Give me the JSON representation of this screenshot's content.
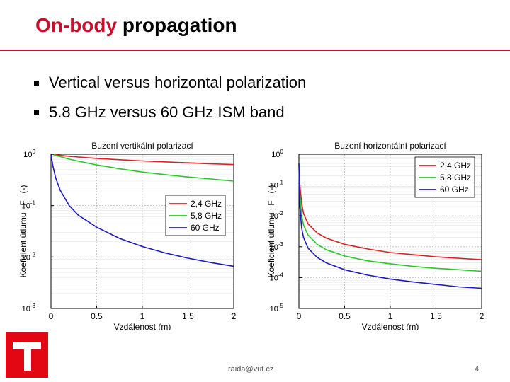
{
  "slide": {
    "title_accent": "On-body",
    "title_rest": "propagation",
    "bullets": [
      "Vertical versus horizontal polarization",
      "5.8 GHz versus 60 GHz ISM band"
    ],
    "footer_email": "raida@vut.cz",
    "page_number": "4",
    "colors": {
      "accent": "#c8102e",
      "logo": "#e30613"
    }
  },
  "chart_data": [
    {
      "type": "line",
      "title": "Buzení vertikální polarizací",
      "xlabel": "Vzdálenost (m)",
      "ylabel": "Koeficient útlumu | F | (-)",
      "yscale": "log",
      "xlim": [
        0,
        2
      ],
      "ylim": [
        0.001,
        1
      ],
      "xticks": [
        "0",
        "0.5",
        "1",
        "1.5",
        "2"
      ],
      "yticks": [
        {
          "v": 1,
          "e": "0"
        },
        {
          "v": 0.1,
          "e": "-1"
        },
        {
          "v": 0.01,
          "e": "-2"
        },
        {
          "v": 0.001,
          "e": "-3"
        }
      ],
      "grid": true,
      "legend": "center-right",
      "x": [
        0,
        0.02,
        0.05,
        0.1,
        0.2,
        0.3,
        0.5,
        0.75,
        1,
        1.25,
        1.5,
        1.75,
        2
      ],
      "series": [
        {
          "name": "2,4 GHz",
          "color": "#e02020",
          "values": [
            1,
            1,
            0.98,
            0.95,
            0.91,
            0.88,
            0.83,
            0.78,
            0.74,
            0.71,
            0.68,
            0.65,
            0.63
          ]
        },
        {
          "name": "5,8 GHz",
          "color": "#22cc22",
          "values": [
            1,
            0.99,
            0.95,
            0.9,
            0.8,
            0.73,
            0.62,
            0.52,
            0.45,
            0.4,
            0.36,
            0.33,
            0.3
          ]
        },
        {
          "name": "60 GHz",
          "color": "#1a1acc",
          "values": [
            1,
            0.6,
            0.35,
            0.2,
            0.1,
            0.065,
            0.038,
            0.023,
            0.016,
            0.012,
            0.0095,
            0.0078,
            0.0066
          ]
        }
      ]
    },
    {
      "type": "line",
      "title": "Buzení horizontální polarizací",
      "xlabel": "Vzdálenost (m)",
      "ylabel": "Koeficient útlumu | F | (-)",
      "yscale": "log",
      "xlim": [
        0,
        2
      ],
      "ylim": [
        1e-05,
        1
      ],
      "xticks": [
        "0",
        "0.5",
        "1",
        "1.5",
        "2"
      ],
      "yticks": [
        {
          "v": 1,
          "e": "0"
        },
        {
          "v": 0.1,
          "e": "-1"
        },
        {
          "v": 0.01,
          "e": "-2"
        },
        {
          "v": 0.001,
          "e": "-3"
        },
        {
          "v": 0.0001,
          "e": "-4"
        },
        {
          "v": 1e-05,
          "e": "-5"
        }
      ],
      "grid": true,
      "legend": "top-right",
      "x": [
        0,
        0.01,
        0.03,
        0.05,
        0.1,
        0.2,
        0.3,
        0.5,
        0.75,
        1,
        1.25,
        1.5,
        1.75,
        2
      ],
      "series": [
        {
          "name": "2,4 GHz",
          "color": "#e02020",
          "values": [
            0.5,
            0.1,
            0.025,
            0.012,
            0.0055,
            0.0028,
            0.0019,
            0.0012,
            0.00085,
            0.00065,
            0.00055,
            0.00047,
            0.00042,
            0.00038
          ]
        },
        {
          "name": "5,8 GHz",
          "color": "#22cc22",
          "values": [
            0.5,
            0.05,
            0.01,
            0.005,
            0.0024,
            0.0012,
            0.0008,
            0.0005,
            0.00035,
            0.00028,
            0.00023,
            0.0002,
            0.00018,
            0.00016
          ]
        },
        {
          "name": "60 GHz",
          "color": "#1a1acc",
          "values": [
            0.5,
            0.02,
            0.004,
            0.002,
            0.0009,
            0.00045,
            0.0003,
            0.00018,
            0.00012,
            9e-05,
            7.2e-05,
            6e-05,
            5e-05,
            4.5e-05
          ]
        }
      ]
    }
  ]
}
